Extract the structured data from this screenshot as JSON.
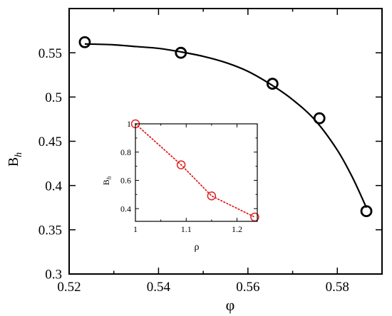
{
  "chart_data": [
    {
      "type": "scatter",
      "title": "",
      "xlabel": "φ",
      "ylabel_main": "B",
      "ylabel_sub": "h",
      "xlim": [
        0.52,
        0.59
      ],
      "ylim": [
        0.3,
        0.6
      ],
      "x_ticks": [
        0.52,
        0.54,
        0.56,
        0.58
      ],
      "x_tick_labels": [
        "0.52",
        "0.54",
        "0.56",
        "0.58"
      ],
      "y_ticks": [
        0.3,
        0.35,
        0.4,
        0.45,
        0.5,
        0.55
      ],
      "y_tick_labels": [
        "0.3",
        "0.35",
        "0.4",
        "0.45",
        "0.5",
        "0.55"
      ],
      "grid": false,
      "points": {
        "x": [
          0.5235,
          0.545,
          0.5655,
          0.576,
          0.5865
        ],
        "y": [
          0.562,
          0.55,
          0.515,
          0.476,
          0.371
        ],
        "marker": "open-circle",
        "color": "#000000"
      },
      "fit_curve": {
        "x": [
          0.5235,
          0.53,
          0.535,
          0.54,
          0.545,
          0.55,
          0.555,
          0.56,
          0.5655,
          0.57,
          0.575,
          0.58,
          0.5835,
          0.5865
        ],
        "y": [
          0.56,
          0.559,
          0.557,
          0.555,
          0.551,
          0.546,
          0.539,
          0.529,
          0.513,
          0.497,
          0.474,
          0.44,
          0.408,
          0.375
        ],
        "color": "#000000"
      }
    },
    {
      "type": "line",
      "title": "",
      "xlabel": "ρ",
      "ylabel_main": "B",
      "ylabel_sub": "h",
      "xlim": [
        1.0,
        1.24
      ],
      "ylim": [
        0.31,
        1.0
      ],
      "x_ticks": [
        1.0,
        1.1,
        1.2
      ],
      "x_tick_labels": [
        "1",
        "1.1",
        "1.2"
      ],
      "y_ticks": [
        0.4,
        0.6,
        0.8,
        1.0
      ],
      "y_tick_labels": [
        "0.4",
        "0.6",
        "0.8",
        "1"
      ],
      "grid": false,
      "points": {
        "x": [
          1.0,
          1.09,
          1.15,
          1.235
        ],
        "y": [
          1.0,
          0.71,
          0.49,
          0.34
        ],
        "marker": "open-circle",
        "line_style": "dotted",
        "color": "#e02020"
      }
    }
  ]
}
